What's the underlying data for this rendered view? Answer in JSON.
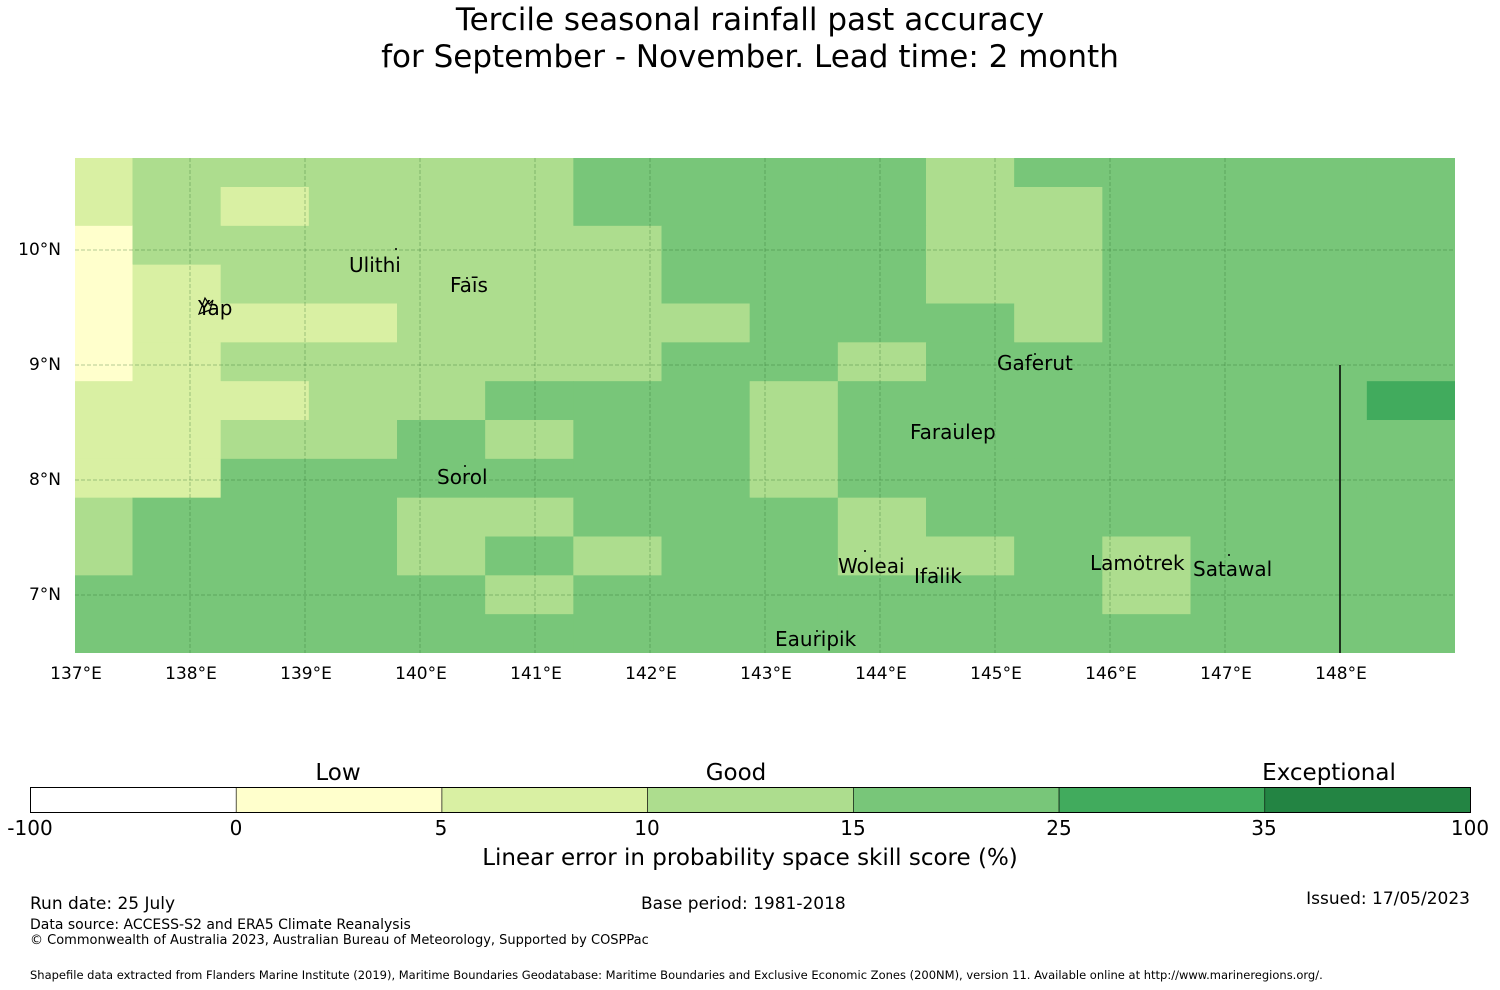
{
  "title": {
    "line1": "Tercile seasonal rainfall past accuracy",
    "line2": "for September - November. Lead time: 2 month"
  },
  "map": {
    "x_ticks": [
      "137°E",
      "138°E",
      "139°E",
      "140°E",
      "141°E",
      "142°E",
      "143°E",
      "144°E",
      "145°E",
      "146°E",
      "147°E",
      "148°E"
    ],
    "y_ticks": [
      "10°N",
      "9°N",
      "8°N",
      "7°N"
    ],
    "lon_range": [
      136.96,
      148.96
    ],
    "lat_range": [
      6.5,
      10.8
    ],
    "places": [
      {
        "id": "ulithi",
        "name": "Ulithi"
      },
      {
        "id": "fais",
        "name": "Faīs"
      },
      {
        "id": "yap",
        "name": "Yap"
      },
      {
        "id": "gaferut",
        "name": "Gaferut"
      },
      {
        "id": "faraulep",
        "name": "Faraulep"
      },
      {
        "id": "sorol",
        "name": "Sorol"
      },
      {
        "id": "woleai",
        "name": "Woleai"
      },
      {
        "id": "ifalik",
        "name": "Ifalik"
      },
      {
        "id": "lamotrek",
        "name": "Lamotrek"
      },
      {
        "id": "satawal",
        "name": "Satawal"
      },
      {
        "id": "eauripik",
        "name": "Eauripik"
      }
    ],
    "grid_category_rows_north_to_south": [
      "2333334444344444",
      "2323334444334444",
      "1333333444334444",
      "1233333444334444",
      "1222333344434444",
      "1233333443444444",
      "2223344434444445",
      "2233434434444444",
      "2244444434444444",
      "3444334443444444",
      "3444343443343444",
      "4444434444443444",
      "4444444444444444"
    ],
    "grid_category_note": "tokens map to legend.categories index",
    "boundary_line_longitude": 148.0
  },
  "legend": {
    "titles": {
      "low": "Low",
      "good": "Good",
      "exceptional": "Exceptional"
    },
    "categories": [
      {
        "from": "-100",
        "to": "0",
        "color": "#ffffff"
      },
      {
        "from": "0",
        "to": "5",
        "color": "#ffffcc"
      },
      {
        "from": "5",
        "to": "10",
        "color": "#d9f0a3"
      },
      {
        "from": "10",
        "to": "15",
        "color": "#addd8e"
      },
      {
        "from": "15",
        "to": "25",
        "color": "#78c679"
      },
      {
        "from": "25",
        "to": "35",
        "color": "#41ab5d"
      },
      {
        "from": "35",
        "to": "100",
        "color": "#238443"
      }
    ],
    "tick_labels": [
      "-100",
      "0",
      "5",
      "10",
      "15",
      "25",
      "35",
      "100"
    ],
    "caption": "Linear error in probability space skill score (%)"
  },
  "footer": {
    "run_date": "Run date: 25 July",
    "base_period": "Base period: 1981-2018",
    "issued": "Issued: 17/05/2023",
    "data_source": "Data source: ACCESS-S2 and ERA5 Climate Reanalysis",
    "copyright": "© Commonwealth of Australia 2023, Australian Bureau of Meteorology, Supported by COSPPac",
    "shapefile": "Shapefile data extracted from Flanders Marine Institute (2019), Maritime Boundaries Geodatabase: Maritime Boundaries and Exclusive Economic Zones (200NM), version 11. Available online at http://www.marineregions.org/."
  }
}
